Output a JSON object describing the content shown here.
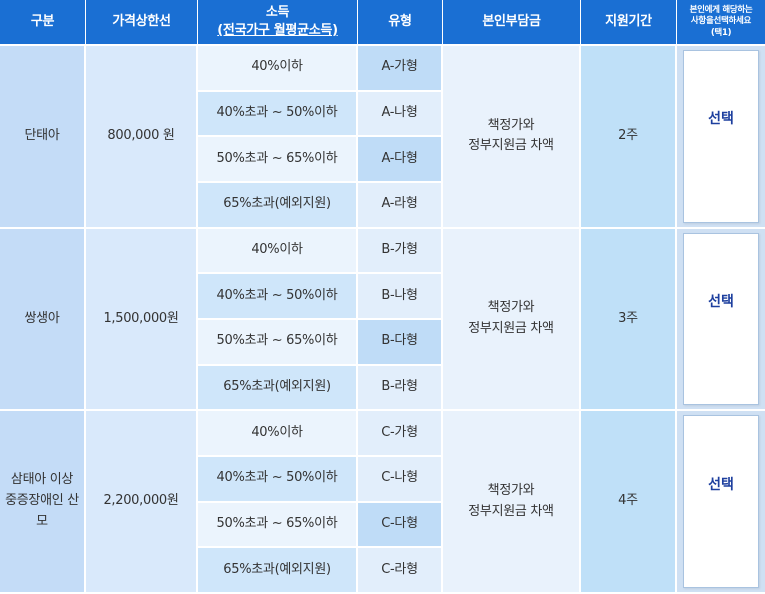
{
  "headers": {
    "category": "구분",
    "price_limit": "가격상한선",
    "income_line1": "소득",
    "income_line2": "(전국가구 월평균소득)",
    "type": "유형",
    "copay": "본인부담금",
    "period": "지원기간",
    "select_line1": "본인에게 해당하는",
    "select_line2": "사항을선택하세요",
    "select_line3": "(택1)"
  },
  "groups": [
    {
      "category": "단태아",
      "price": "800,000 원",
      "copay": "책정가와\n정부지원금 차액",
      "period": "2주",
      "select_label": "선택",
      "rows": [
        {
          "income": "40%이하",
          "type": "A-가형"
        },
        {
          "income": "40%초과 ~ 50%이하",
          "type": "A-나형"
        },
        {
          "income": "50%초과 ~ 65%이하",
          "type": "A-다형"
        },
        {
          "income": "65%초과(예외지원)",
          "type": "A-라형"
        }
      ]
    },
    {
      "category": "쌍생아",
      "price": "1,500,000원",
      "copay": "책정가와\n정부지원금 차액",
      "period": "3주",
      "select_label": "선택",
      "rows": [
        {
          "income": "40%이하",
          "type": "B-가형"
        },
        {
          "income": "40%초과 ~ 50%이하",
          "type": "B-나형"
        },
        {
          "income": "50%초과 ~ 65%이하",
          "type": "B-다형"
        },
        {
          "income": "65%초과(예외지원)",
          "type": "B-라형"
        }
      ]
    },
    {
      "category": "삼태아 이상\n중증장애인 산모",
      "price": "2,200,000원",
      "copay": "책정가와\n정부지원금 차액",
      "period": "4주",
      "select_label": "선택",
      "rows": [
        {
          "income": "40%이하",
          "type": "C-가형"
        },
        {
          "income": "40%초과 ~ 50%이하",
          "type": "C-나형"
        },
        {
          "income": "50%초과 ~ 65%이하",
          "type": "C-다형"
        },
        {
          "income": "65%초과(예외지원)",
          "type": "C-라형"
        }
      ]
    }
  ]
}
